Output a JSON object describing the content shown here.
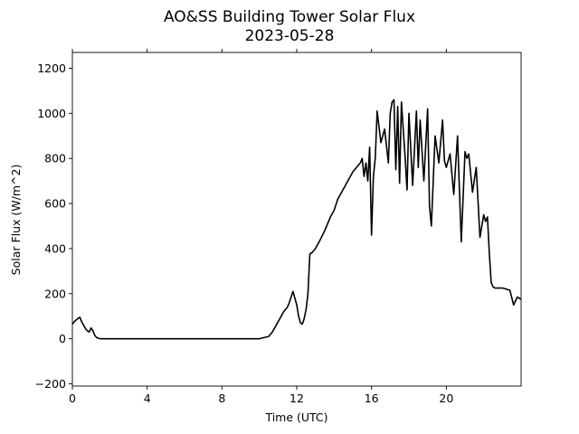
{
  "chart_data": {
    "type": "line",
    "title": "AO&SS Building Tower Solar Flux",
    "subtitle": "2023-05-28",
    "xlabel": "Time (UTC)",
    "ylabel": "Solar Flux (W/m^2)",
    "xlim": [
      0,
      24
    ],
    "ylim": [
      -210,
      1270
    ],
    "xticks": [
      0,
      4,
      8,
      12,
      16,
      20
    ],
    "xtick_labels": [
      "0",
      "4",
      "8",
      "12",
      "16",
      "20"
    ],
    "yticks": [
      -200,
      0,
      200,
      400,
      600,
      800,
      1000,
      1200
    ],
    "ytick_labels": [
      "−200",
      "0",
      "200",
      "400",
      "600",
      "800",
      "1000",
      "1200"
    ],
    "grid": false,
    "line_color": "#000000",
    "series": [
      {
        "x": [
          0,
          0.15,
          0.3,
          0.4,
          0.5,
          0.6,
          0.7,
          0.8,
          0.9,
          1.0,
          1.1,
          1.2,
          1.3,
          1.4,
          1.5,
          2,
          4,
          6,
          8,
          10,
          10.5,
          10.7,
          10.9,
          11.1,
          11.3,
          11.5,
          11.6,
          11.8,
          12.0,
          12.1,
          12.2,
          12.3,
          12.4,
          12.5,
          12.6,
          12.7,
          12.75,
          12.8,
          13.0,
          13.2,
          13.5,
          13.8,
          14.0,
          14.2,
          14.4,
          14.6,
          14.8,
          15.0,
          15.2,
          15.4,
          15.5,
          15.6,
          15.7,
          15.8,
          15.9,
          16.0,
          16.1,
          16.2,
          16.3,
          16.5,
          16.7,
          16.9,
          17.0,
          17.1,
          17.2,
          17.3,
          17.4,
          17.5,
          17.6,
          17.8,
          17.9,
          18.0,
          18.2,
          18.4,
          18.5,
          18.6,
          18.8,
          19.0,
          19.1,
          19.2,
          19.4,
          19.6,
          19.8,
          19.9,
          20.0,
          20.2,
          20.4,
          20.6,
          20.8,
          21.0,
          21.1,
          21.2,
          21.4,
          21.6,
          21.8,
          22.0,
          22.1,
          22.2,
          22.3,
          22.4,
          22.5,
          22.6,
          22.8,
          23.0,
          23.2,
          23.4,
          23.6,
          23.8,
          24.0
        ],
        "values": [
          65,
          80,
          90,
          95,
          75,
          60,
          45,
          35,
          30,
          48,
          35,
          15,
          5,
          2,
          0,
          0,
          0,
          0,
          0,
          0,
          10,
          30,
          60,
          90,
          120,
          140,
          160,
          210,
          150,
          100,
          70,
          65,
          90,
          130,
          200,
          375,
          380,
          380,
          400,
          430,
          480,
          540,
          570,
          620,
          650,
          680,
          710,
          740,
          760,
          780,
          800,
          720,
          780,
          700,
          850,
          460,
          720,
          800,
          1010,
          870,
          930,
          780,
          1000,
          1050,
          1060,
          750,
          1030,
          690,
          1050,
          800,
          660,
          1000,
          680,
          1010,
          760,
          970,
          700,
          1020,
          590,
          500,
          900,
          780,
          970,
          790,
          760,
          820,
          640,
          900,
          430,
          830,
          800,
          820,
          650,
          760,
          450,
          550,
          520,
          540,
          380,
          250,
          230,
          225,
          225,
          225,
          220,
          215,
          150,
          185,
          175
        ]
      }
    ]
  }
}
